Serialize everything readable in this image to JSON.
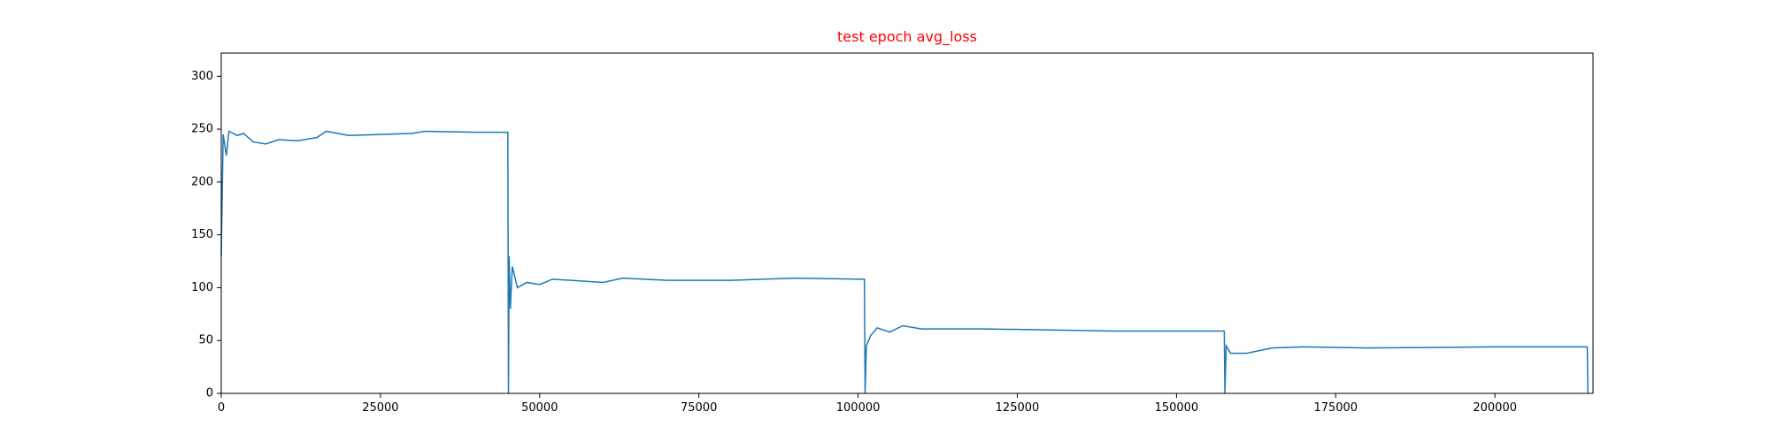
{
  "chart_data": {
    "type": "line",
    "title": "test epoch avg_loss",
    "title_color": "red",
    "x": [
      0,
      300,
      800,
      1200,
      2500,
      3500,
      5000,
      7000,
      9000,
      12000,
      15000,
      16500,
      20000,
      25000,
      30000,
      32000,
      40000,
      45000,
      45100,
      45200,
      45400,
      45700,
      46500,
      48000,
      50000,
      52000,
      60000,
      63000,
      70000,
      80000,
      90000,
      101000,
      101100,
      101300,
      102000,
      103000,
      105000,
      107000,
      110000,
      120000,
      130000,
      140000,
      157500,
      157600,
      157800,
      158500,
      161000,
      165000,
      170000,
      180000,
      200000,
      214500,
      214600
    ],
    "series": [
      {
        "name": "avg_loss",
        "color": "#1f77b4",
        "values": [
          130,
          245,
          225,
          248,
          244,
          246,
          238,
          236,
          240,
          239,
          242,
          248,
          244,
          245,
          246,
          248,
          247,
          247,
          0,
          130,
          80,
          120,
          100,
          105,
          103,
          108,
          105,
          109,
          107,
          107,
          109,
          108,
          0,
          45,
          55,
          62,
          58,
          64,
          61,
          61,
          60,
          59,
          59,
          0,
          45,
          38,
          38,
          43,
          44,
          43,
          44,
          44,
          0
        ]
      }
    ],
    "xlim": [
      0,
      215400
    ],
    "ylim": [
      0,
      322
    ],
    "xticks": [
      0,
      25000,
      50000,
      75000,
      100000,
      125000,
      150000,
      175000,
      200000
    ],
    "yticks": [
      0,
      50,
      100,
      150,
      200,
      250,
      300
    ]
  }
}
